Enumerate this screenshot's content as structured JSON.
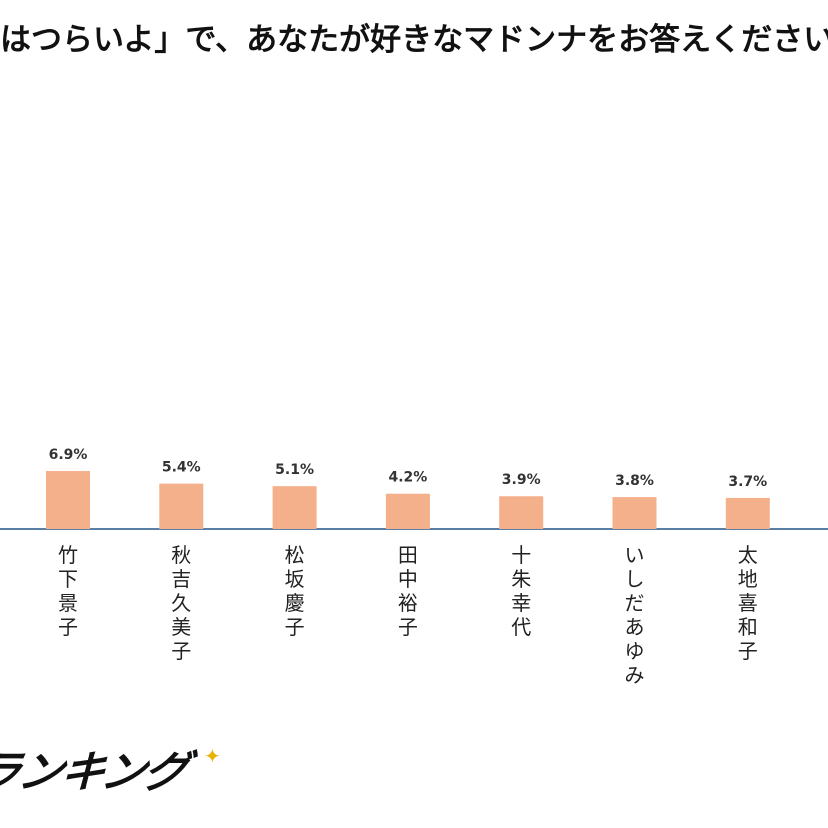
{
  "title": "はつらいよ」で、あなたが好きなマドンナをお答えください",
  "logo": {
    "text": "ランキング",
    "accent_color": "#e6b400"
  },
  "chart_data": {
    "type": "bar",
    "categories": [
      "竹下景子",
      "秋吉久美子",
      "松坂慶子",
      "田中裕子",
      "十朱幸代",
      "いしだあゆみ",
      "太地喜和子"
    ],
    "value_labels": [
      "6.9%",
      "5.4%",
      "5.1%",
      "4.2%",
      "3.9%",
      "3.8%",
      "3.7%"
    ],
    "values": [
      6.9,
      5.4,
      5.1,
      4.2,
      3.9,
      3.8,
      3.7
    ],
    "bar_color": "#f4b08a",
    "axis_color": "#5a7fa6",
    "title": "はつらいよ」で、あなたが好きなマドンナをお答えください",
    "xlabel": "",
    "ylabel": "",
    "grid": false,
    "legend": "none"
  }
}
